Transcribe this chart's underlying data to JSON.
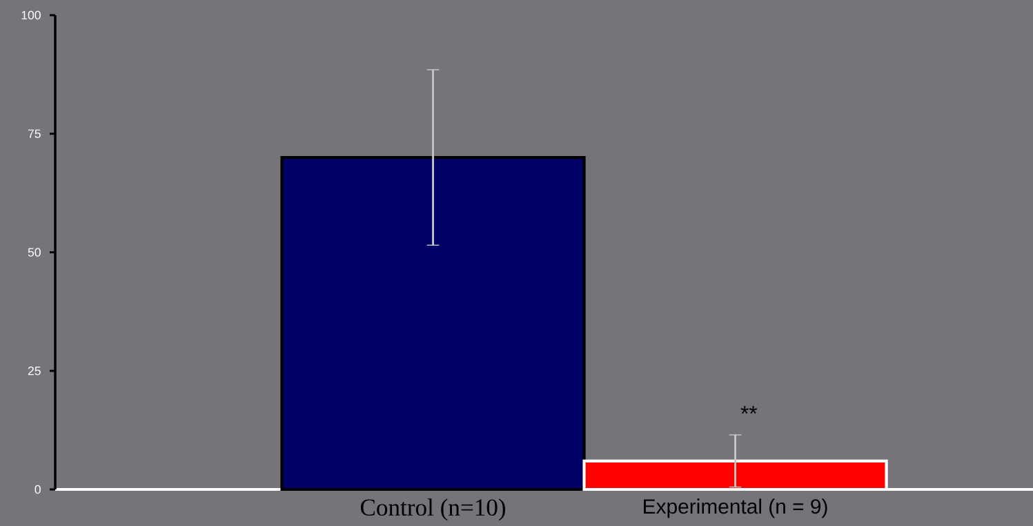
{
  "chart_data": {
    "type": "bar",
    "categories": [
      "Control (n=10)",
      "Experimental (n = 9)"
    ],
    "values": [
      70,
      6
    ],
    "colors": [
      "#000066",
      "#ff0000"
    ],
    "errors": [
      [
        51.5,
        88.5
      ],
      [
        0.5,
        11.5
      ]
    ],
    "ylim": [
      0,
      100
    ],
    "yticks": [
      0,
      25,
      50,
      75,
      100
    ],
    "annotations": [
      "**"
    ]
  }
}
